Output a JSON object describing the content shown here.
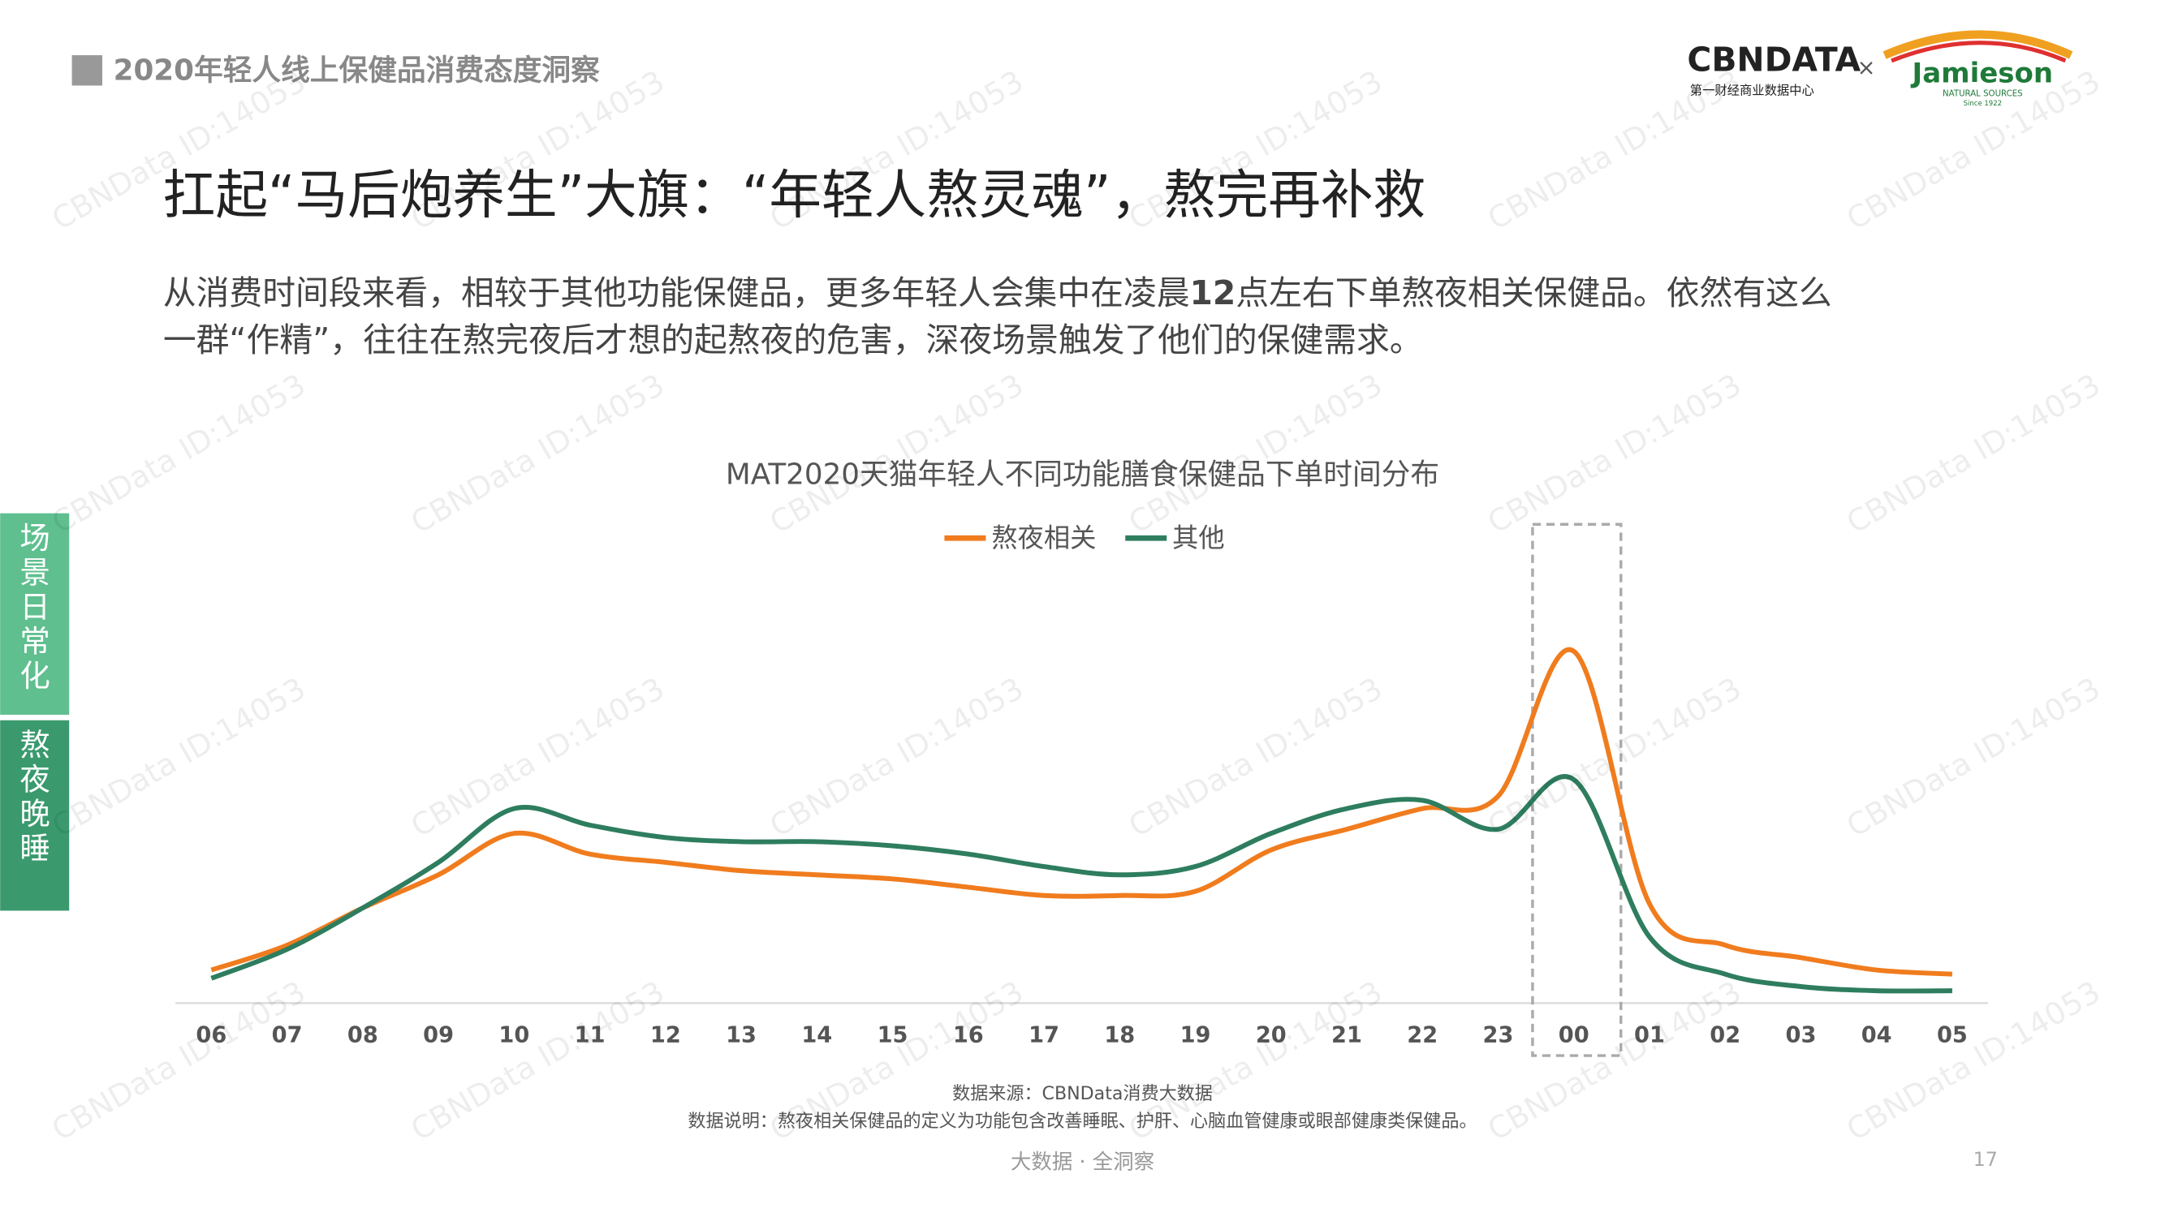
{
  "header": {
    "section": "2020年轻人线上保健品消费态度洞察",
    "logo_main": "CBNDATA",
    "logo_sub": "第一财经商业数据中心",
    "cross": "×",
    "partner": "Jamieson",
    "partner_sub": "NATURAL SOURCES",
    "partner_since": "Since 1922"
  },
  "title": "扛起“马后炮养生”大旗：“年轻人熬灵魂”，熬完再补救",
  "subtitle": {
    "line1_a": "从消费时间段来看，相较于其他功能保健品，更多年轻人会集中在凌晨",
    "line1_bold": "12",
    "line1_b": "点左右下单熬夜相关保健品。依然有这么",
    "line2": "一群“作精”，往往在熬完夜后才想的起熬夜的危害，深夜场景触发了他们的保健需求。"
  },
  "side_tabs": [
    "场景日常化",
    "熬夜晚睡"
  ],
  "watermark": "CBNData ID:14053",
  "chart_data": {
    "type": "line",
    "title": "MAT2020天猫年轻人不同功能膳食保健品下单时间分布",
    "categories": [
      "06",
      "07",
      "08",
      "09",
      "10",
      "11",
      "12",
      "13",
      "14",
      "15",
      "16",
      "17",
      "18",
      "19",
      "20",
      "21",
      "22",
      "23",
      "00",
      "01",
      "02",
      "03",
      "04",
      "05"
    ],
    "series": [
      {
        "name": "熬夜相关",
        "color": "#f07c1e",
        "values": [
          8,
          14,
          23,
          31,
          41,
          36,
          34,
          32,
          31,
          30,
          28,
          26,
          26,
          27,
          37,
          42,
          47,
          50,
          85,
          24,
          14,
          11,
          8,
          7
        ]
      },
      {
        "name": "其他",
        "color": "#2e7d5f",
        "values": [
          6,
          13,
          23,
          34,
          47,
          43,
          40,
          39,
          39,
          38,
          36,
          33,
          31,
          33,
          41,
          47,
          49,
          42,
          54,
          16,
          7,
          4,
          3,
          3
        ]
      }
    ],
    "ylim": [
      0,
      100
    ],
    "legend": "top"
  },
  "source": "数据来源：CBNData消费大数据",
  "note": "数据说明：熬夜相关保健品的定义为功能包含改善睡眠、护肝、心脑血管健康或眼部健康类保健品。",
  "footer": "大数据 · 全洞察",
  "page_number": "17"
}
